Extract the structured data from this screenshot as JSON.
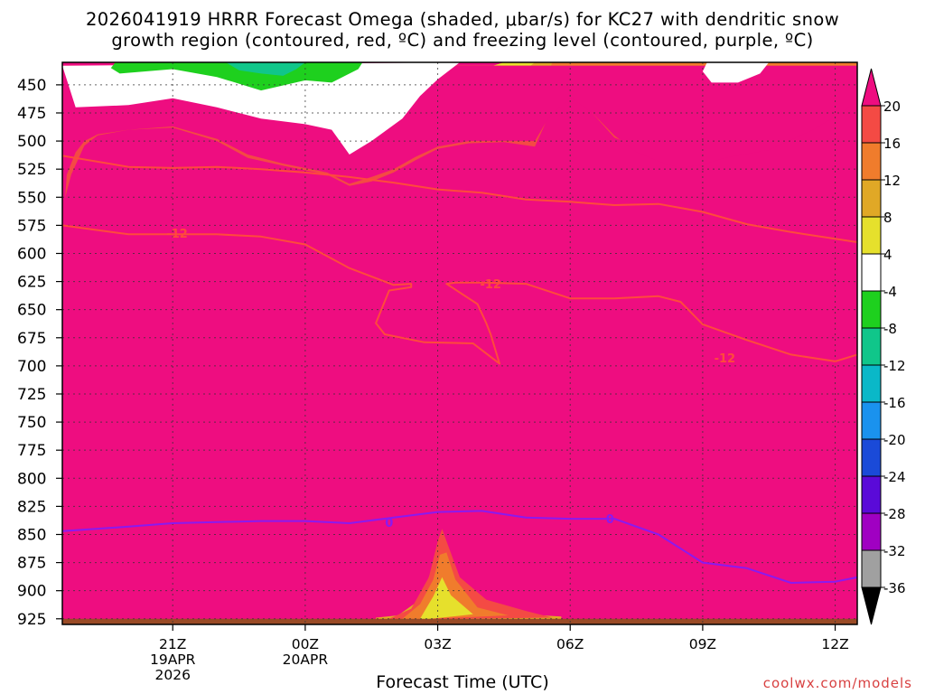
{
  "title_line1": "2026041919 HRRR Forecast Omega (shaded, μbar/s) for KC27 with dendritic snow",
  "title_line2": "growth region (contoured, red, ºC) and freezing level (contoured, purple, ºC)",
  "footer": {
    "credit": "coolwx.com/models"
  },
  "chart_data": {
    "type": "heatmap",
    "xlabel": "Forecast Time (UTC)",
    "ylabel": "",
    "x_range_hours": [
      -2.5,
      15.5
    ],
    "x_ticks": [
      {
        "h": 0,
        "lines": [
          "21Z",
          "19APR",
          "2026"
        ]
      },
      {
        "h": 3,
        "lines": [
          "00Z",
          "20APR"
        ]
      },
      {
        "h": 6,
        "lines": [
          "03Z"
        ]
      },
      {
        "h": 9,
        "lines": [
          "06Z"
        ]
      },
      {
        "h": 12,
        "lines": [
          "09Z"
        ]
      },
      {
        "h": 15,
        "lines": [
          "12Z"
        ]
      }
    ],
    "y_ticks": [
      450,
      475,
      500,
      525,
      550,
      575,
      600,
      625,
      650,
      675,
      700,
      725,
      750,
      775,
      800,
      825,
      850,
      875,
      900,
      925
    ],
    "y_range": [
      430,
      930
    ],
    "grid": true,
    "background_fill": "#ee0d80",
    "colorbar": {
      "labels": [
        "20",
        "16",
        "12",
        "8",
        "4",
        "-4",
        "-8",
        "-12",
        "-16",
        "-20",
        "-24",
        "-28",
        "-32",
        "-36"
      ],
      "colors": [
        "#ee0d80",
        "#f44a44",
        "#f07c2c",
        "#e0a826",
        "#e6e02c",
        "#ffffff",
        "#1ed01e",
        "#10c68a",
        "#0ab8c8",
        "#1a92ee",
        "#1a4ad8",
        "#5a0ad8",
        "#a000c2",
        "#a0a0a0",
        "#000000"
      ],
      "legend_position": "right"
    },
    "omega_bands": [
      {
        "value": 4,
        "color": "#e6e02c",
        "points": [
          [
            -2.5,
            433
          ],
          [
            -2.5,
            487
          ],
          [
            -2.2,
            476
          ],
          [
            -1.7,
            470
          ],
          [
            -1,
            467
          ],
          [
            0,
            466
          ],
          [
            1,
            478
          ],
          [
            1.7,
            494
          ],
          [
            2.5,
            498
          ],
          [
            3.5,
            505
          ],
          [
            4,
            518
          ],
          [
            4.5,
            509
          ],
          [
            5,
            500
          ],
          [
            5.5,
            484
          ],
          [
            6,
            467
          ],
          [
            6.7,
            450
          ],
          [
            7,
            436
          ],
          [
            7.5,
            430
          ],
          [
            12,
            430
          ],
          [
            12.4,
            433
          ],
          [
            12.7,
            430
          ],
          [
            15.5,
            430
          ],
          [
            15.5,
            433
          ]
        ]
      },
      {
        "value": 8,
        "color": "#e0a826",
        "points": [
          [
            -2.5,
            433
          ],
          [
            -2.5,
            495
          ],
          [
            -2.2,
            487
          ],
          [
            -1.7,
            480
          ],
          [
            -1,
            477
          ],
          [
            0,
            476
          ],
          [
            1,
            486
          ],
          [
            1.7,
            502
          ],
          [
            2.5,
            506
          ],
          [
            3.5,
            514
          ],
          [
            4,
            526
          ],
          [
            4.5,
            519
          ],
          [
            5,
            512
          ],
          [
            5.5,
            496
          ],
          [
            6,
            484
          ],
          [
            6.7,
            466
          ],
          [
            7.5,
            448
          ],
          [
            8,
            436
          ],
          [
            8.2,
            430
          ],
          [
            15.5,
            430
          ],
          [
            15.5,
            433
          ]
        ]
      },
      {
        "value": 12,
        "color": "#f07c2c",
        "points": [
          [
            -2.5,
            433
          ],
          [
            -2.5,
            505
          ],
          [
            -2.2,
            496
          ],
          [
            -1.7,
            488
          ],
          [
            -1,
            484
          ],
          [
            0,
            482
          ],
          [
            1,
            493
          ],
          [
            1.7,
            508
          ],
          [
            2.5,
            514
          ],
          [
            3.5,
            522
          ],
          [
            4,
            533
          ],
          [
            4.5,
            527
          ],
          [
            5,
            520
          ],
          [
            5.5,
            507
          ],
          [
            6,
            497
          ],
          [
            6.7,
            484
          ],
          [
            7.5,
            470
          ],
          [
            8.3,
            452
          ],
          [
            8.6,
            430
          ],
          [
            15.5,
            430
          ],
          [
            15.5,
            433
          ]
        ]
      },
      {
        "value": 16,
        "color": "#f44a44",
        "points": [
          [
            -2.5,
            433
          ],
          [
            -2.5,
            560
          ],
          [
            -2.3,
            530
          ],
          [
            -2,
            504
          ],
          [
            -1.7,
            495
          ],
          [
            -1,
            490
          ],
          [
            0,
            488
          ],
          [
            1,
            500
          ],
          [
            1.7,
            515
          ],
          [
            2.5,
            522
          ],
          [
            3.5,
            530
          ],
          [
            4,
            540
          ],
          [
            4.5,
            536
          ],
          [
            5,
            528
          ],
          [
            5.5,
            517
          ],
          [
            6,
            507
          ],
          [
            6.7,
            502
          ],
          [
            7.5,
            501
          ],
          [
            8.2,
            505
          ],
          [
            8.6,
            470
          ],
          [
            9,
            450
          ],
          [
            9.5,
            475
          ],
          [
            10,
            497
          ],
          [
            10.5,
            505
          ],
          [
            11,
            515
          ],
          [
            11.5,
            522
          ],
          [
            12,
            521
          ],
          [
            12.5,
            503
          ],
          [
            13.5,
            478
          ],
          [
            14.5,
            458
          ],
          [
            15,
            450
          ],
          [
            15.5,
            440
          ],
          [
            15.5,
            433
          ]
        ]
      },
      {
        "value": 20,
        "color": "#ee0d80",
        "points": [
          [
            -2.5,
            433
          ],
          [
            -2.5,
            700
          ],
          [
            -2.45,
            560
          ],
          [
            -2.4,
            530
          ],
          [
            -2.2,
            510
          ],
          [
            -2,
            500
          ],
          [
            -1.7,
            494
          ],
          [
            -1,
            490
          ],
          [
            0,
            487
          ],
          [
            1,
            498
          ],
          [
            1.7,
            512
          ],
          [
            2.5,
            520
          ],
          [
            3.5,
            528
          ],
          [
            4,
            538
          ],
          [
            4.5,
            532
          ],
          [
            5,
            525
          ],
          [
            5.5,
            514
          ],
          [
            6,
            505
          ],
          [
            6.7,
            500
          ],
          [
            7.5,
            500
          ],
          [
            8.2,
            500
          ],
          [
            8.5,
            480
          ],
          [
            9,
            461
          ],
          [
            9.5,
            475
          ],
          [
            10,
            495
          ],
          [
            10.5,
            510
          ],
          [
            11,
            518
          ],
          [
            11.5,
            524
          ],
          [
            12,
            521
          ],
          [
            12.5,
            515
          ],
          [
            13.5,
            508
          ],
          [
            14.5,
            490
          ],
          [
            15,
            478
          ],
          [
            15.5,
            465
          ],
          [
            15.5,
            433
          ]
        ]
      },
      {
        "value": -4,
        "color": "#ffffff",
        "points": [
          [
            -2.5,
            433
          ],
          [
            -2.2,
            470
          ],
          [
            -1,
            468
          ],
          [
            0,
            462
          ],
          [
            1,
            470
          ],
          [
            2,
            480
          ],
          [
            3,
            485
          ],
          [
            3.6,
            490
          ],
          [
            4,
            512
          ],
          [
            4.5,
            500
          ],
          [
            5.2,
            480
          ],
          [
            5.6,
            460
          ],
          [
            6,
            445
          ],
          [
            6.5,
            430
          ]
        ]
      },
      {
        "value": -4,
        "color": "#ffffff",
        "points": [
          [
            13.5,
            430
          ],
          [
            13.3,
            440
          ],
          [
            12.8,
            448
          ],
          [
            12.2,
            448
          ],
          [
            12,
            438
          ],
          [
            12.1,
            430
          ]
        ]
      },
      {
        "value": -8,
        "color": "#1ed01e",
        "points": [
          [
            -1.3,
            430
          ],
          [
            -1.4,
            435
          ],
          [
            -1.2,
            440
          ],
          [
            0,
            436
          ],
          [
            1,
            443
          ],
          [
            2,
            455
          ],
          [
            3,
            446
          ],
          [
            3.6,
            448
          ],
          [
            4.2,
            436
          ],
          [
            4.3,
            430
          ]
        ]
      },
      {
        "value": -12,
        "color": "#10c68a",
        "points": [
          [
            1.2,
            430
          ],
          [
            1.5,
            437
          ],
          [
            2,
            440
          ],
          [
            2.5,
            442
          ],
          [
            2.8,
            436
          ],
          [
            3,
            430
          ]
        ]
      },
      {
        "value": 8,
        "color": "#e0a826",
        "points": [
          [
            4.6,
            924
          ],
          [
            5.1,
            922
          ],
          [
            5.6,
            908
          ],
          [
            5.9,
            878
          ],
          [
            6.1,
            862
          ],
          [
            6.3,
            878
          ],
          [
            6.8,
            910
          ],
          [
            7.5,
            920
          ],
          [
            8.8,
            923
          ],
          [
            8.8,
            926
          ],
          [
            4.6,
            926
          ]
        ]
      },
      {
        "value": 16,
        "color": "#f44a44",
        "points": [
          [
            4.9,
            925
          ],
          [
            5.4,
            916
          ],
          [
            5.8,
            888
          ],
          [
            6,
            856
          ],
          [
            6.1,
            845
          ],
          [
            6.2,
            856
          ],
          [
            6.5,
            888
          ],
          [
            7.1,
            908
          ],
          [
            8,
            918
          ],
          [
            8.6,
            924
          ],
          [
            4.9,
            926
          ]
        ]
      },
      {
        "value": 12,
        "color": "#f07c2c",
        "points": [
          [
            5.2,
            925
          ],
          [
            5.6,
            912
          ],
          [
            5.9,
            890
          ],
          [
            6.05,
            868
          ],
          [
            6.2,
            866
          ],
          [
            6.4,
            890
          ],
          [
            6.9,
            915
          ],
          [
            7.6,
            922
          ],
          [
            5.2,
            926
          ]
        ]
      },
      {
        "value": 4,
        "color": "#e6e02c",
        "points": [
          [
            5.6,
            925
          ],
          [
            5.9,
            905
          ],
          [
            6.1,
            888
          ],
          [
            6.3,
            904
          ],
          [
            6.8,
            921
          ],
          [
            5.6,
            926
          ]
        ]
      }
    ],
    "dendritic_contours": [
      {
        "label": "-12",
        "color": "#ff4a3c",
        "points": [
          [
            -2.5,
            513
          ],
          [
            -1,
            523
          ],
          [
            0,
            524
          ],
          [
            1,
            523
          ],
          [
            2,
            525
          ],
          [
            3,
            528
          ],
          [
            4,
            532
          ],
          [
            5,
            537
          ],
          [
            6,
            543
          ],
          [
            7,
            546
          ],
          [
            8,
            552
          ],
          [
            9,
            554
          ],
          [
            10,
            557
          ],
          [
            11,
            556
          ],
          [
            12,
            563
          ],
          [
            13,
            574
          ],
          [
            14,
            581
          ],
          [
            15,
            587
          ],
          [
            15.5,
            590
          ]
        ]
      },
      {
        "label": "-12",
        "color": "#ff4a3c",
        "points": [
          [
            -2.5,
            575
          ],
          [
            -1,
            583
          ],
          [
            0,
            583
          ],
          [
            1,
            583
          ],
          [
            2,
            585
          ],
          [
            3,
            592
          ],
          [
            4,
            613
          ],
          [
            5,
            628
          ],
          [
            5.4,
            627
          ],
          [
            5.4,
            630
          ],
          [
            4.9,
            633
          ],
          [
            4.6,
            662
          ],
          [
            4.8,
            672
          ],
          [
            5.7,
            679
          ],
          [
            6.8,
            680
          ],
          [
            7.4,
            698
          ],
          [
            7.2,
            672
          ],
          [
            7.1,
            662
          ],
          [
            6.9,
            645
          ],
          [
            6.2,
            627
          ],
          [
            6.4,
            626
          ],
          [
            7.1,
            626
          ],
          [
            8,
            627
          ],
          [
            9,
            640
          ],
          [
            10,
            640
          ],
          [
            11,
            638
          ],
          [
            11.5,
            643
          ],
          [
            12,
            663
          ],
          [
            13,
            677
          ],
          [
            14,
            690
          ],
          [
            15,
            696
          ],
          [
            15.5,
            690
          ]
        ]
      },
      {
        "label": "0",
        "color": "#8a1af0",
        "points": [
          [
            -2.5,
            847
          ],
          [
            -1,
            843
          ],
          [
            0,
            840
          ],
          [
            1,
            839
          ],
          [
            2,
            838
          ],
          [
            3,
            838
          ],
          [
            4,
            840
          ],
          [
            5,
            835
          ],
          [
            6,
            830
          ],
          [
            7,
            829
          ],
          [
            8,
            835
          ],
          [
            9,
            836
          ],
          [
            10,
            836
          ],
          [
            11,
            850
          ],
          [
            12,
            875
          ],
          [
            13,
            880
          ],
          [
            14,
            893
          ],
          [
            15,
            892
          ],
          [
            15.5,
            888
          ]
        ]
      }
    ],
    "contour_labels": [
      {
        "text": "-12",
        "color": "#ff4a3c",
        "x": 0.1,
        "y": 582
      },
      {
        "text": "-12",
        "color": "#ff4a3c",
        "x": 7.2,
        "y": 627
      },
      {
        "text": "-12",
        "color": "#ff4a3c",
        "x": 12.5,
        "y": 693
      },
      {
        "text": "0",
        "color": "#8a1af0",
        "x": 4.9,
        "y": 839
      },
      {
        "text": "0",
        "color": "#8a1af0",
        "x": 9.9,
        "y": 836
      }
    ],
    "ground_band": {
      "color": "#9a4b26",
      "bottom": 930,
      "top": 925
    }
  }
}
